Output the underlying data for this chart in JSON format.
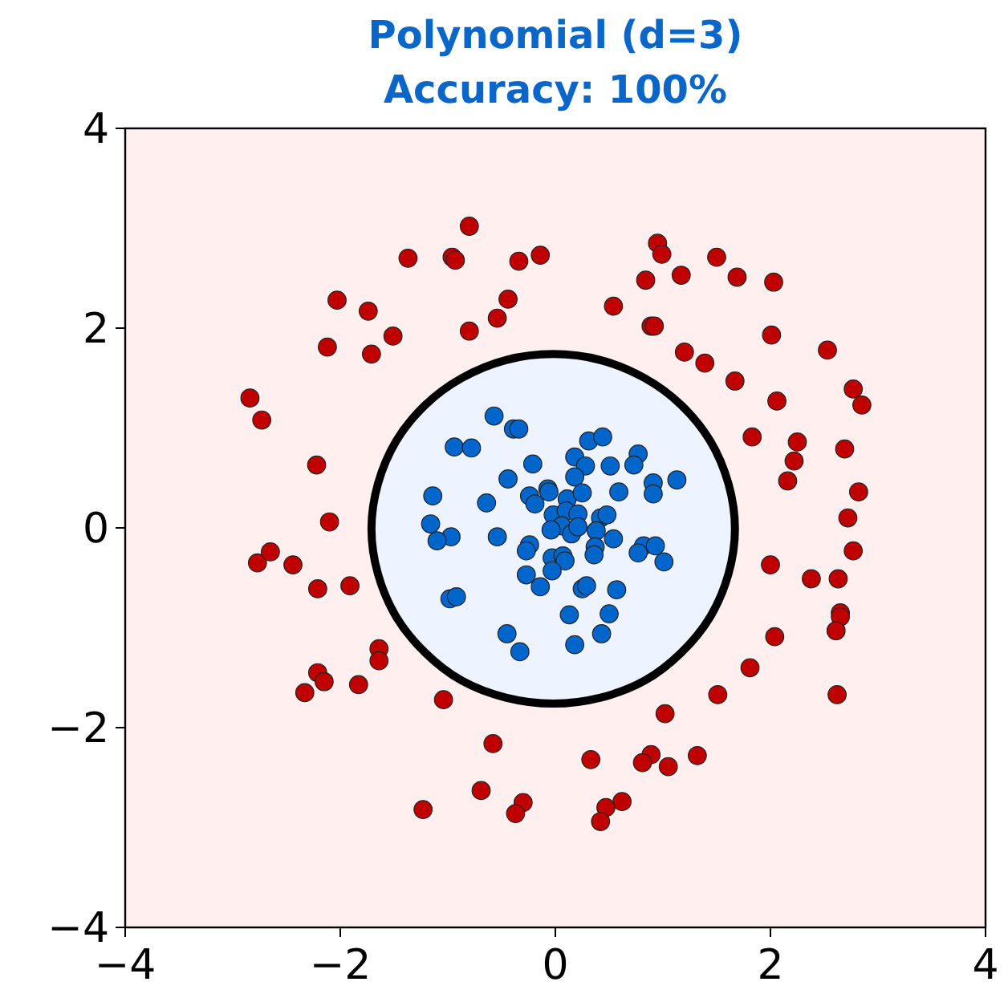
{
  "chart_data": {
    "type": "scatter",
    "title": "Polynomial (d=3)",
    "subtitle": "Accuracy: 100%",
    "xlim": [
      -4,
      4
    ],
    "ylim": [
      -4,
      4
    ],
    "xticks": [
      -4,
      -2,
      0,
      2,
      4
    ],
    "yticks": [
      -4,
      -2,
      0,
      2,
      4
    ],
    "grid": false,
    "series": [
      {
        "color": "#c00000",
        "marker": "circle",
        "x": [
          -0.8,
          -1.37,
          -0.96,
          -0.93,
          -0.34,
          -0.14,
          -2.03,
          -1.74,
          -1.51,
          -2.12,
          -1.71,
          -0.44,
          -0.54,
          -0.8,
          -2.84,
          -2.73,
          -2.22,
          -2.1,
          -2.77,
          -2.65,
          -2.44,
          -2.21,
          -1.91,
          -1.64,
          -1.64,
          -2.21,
          -2.15,
          -2.33,
          -1.83,
          -1.04,
          -0.58,
          -0.69,
          -0.3,
          -0.37,
          -1.23,
          0.95,
          0.99,
          1.5,
          0.84,
          1.17,
          1.69,
          2.03,
          0.54,
          0.89,
          0.92,
          2.01,
          2.53,
          1.2,
          1.39,
          1.67,
          2.06,
          2.77,
          2.85,
          1.83,
          2.25,
          2.22,
          2.69,
          2.16,
          2.82,
          2.72,
          2.77,
          2.0,
          2.38,
          2.63,
          2.65,
          2.65,
          2.61,
          2.04,
          1.81,
          1.51,
          2.62,
          1.02,
          0.33,
          0.89,
          0.81,
          1.05,
          1.32,
          0.62,
          0.47,
          0.42
        ],
        "values": [
          3.02,
          2.7,
          2.71,
          2.68,
          2.67,
          2.73,
          2.28,
          2.17,
          1.92,
          1.81,
          1.74,
          2.29,
          2.1,
          1.97,
          1.3,
          1.08,
          0.63,
          0.06,
          -0.35,
          -0.24,
          -0.37,
          -0.61,
          -0.58,
          -1.21,
          -1.33,
          -1.45,
          -1.54,
          -1.65,
          -1.57,
          -1.72,
          -2.16,
          -2.63,
          -2.75,
          -2.86,
          -2.82,
          2.85,
          2.74,
          2.71,
          2.48,
          2.53,
          2.51,
          2.46,
          2.22,
          2.02,
          2.02,
          1.93,
          1.78,
          1.76,
          1.65,
          1.47,
          1.27,
          1.39,
          1.23,
          0.91,
          0.86,
          0.67,
          0.79,
          0.47,
          0.36,
          0.1,
          -0.23,
          -0.37,
          -0.51,
          -0.51,
          -0.85,
          -0.89,
          -1.03,
          -1.09,
          -1.4,
          -1.67,
          -1.67,
          -1.86,
          -2.32,
          -2.27,
          -2.35,
          -2.39,
          -2.28,
          -2.74,
          -2.8,
          -2.94
        ]
      },
      {
        "color": "#0066cc",
        "marker": "circle",
        "x": [
          -0.57,
          -0.39,
          -0.34,
          -0.94,
          -0.78,
          0.31,
          0.44,
          -0.21,
          0.18,
          0.28,
          0.51,
          0.77,
          0.73,
          1.13,
          0.91,
          0.91,
          -0.44,
          0.18,
          0.59,
          -1.14,
          -0.64,
          -0.24,
          -0.19,
          -0.07,
          -0.06,
          0.11,
          0.25,
          -0.02,
          0.1,
          0.21,
          0.42,
          0.48,
          0.06,
          -0.04,
          0.15,
          0.21,
          0.38,
          -1.16,
          -0.97,
          -1.1,
          -0.54,
          0.54,
          -0.24,
          -0.27,
          0.37,
          0.36,
          0.82,
          0.93,
          0.77,
          1.01,
          -0.03,
          0.07,
          0.09,
          -0.03,
          -0.27,
          -0.14,
          0.25,
          0.29,
          0.57,
          -0.98,
          -0.92,
          0.13,
          0.5,
          -0.45,
          0.43,
          -0.33,
          0.18
        ],
        "values": [
          1.12,
          0.99,
          0.99,
          0.81,
          0.8,
          0.87,
          0.91,
          0.64,
          0.71,
          0.62,
          0.62,
          0.74,
          0.63,
          0.48,
          0.45,
          0.34,
          0.49,
          0.51,
          0.36,
          0.32,
          0.25,
          0.32,
          0.24,
          0.39,
          0.36,
          0.29,
          0.35,
          0.13,
          0.17,
          0.14,
          0.1,
          0.13,
          0.02,
          -0.02,
          -0.06,
          0.01,
          -0.03,
          0.04,
          -0.09,
          -0.13,
          -0.09,
          -0.11,
          -0.17,
          -0.23,
          -0.19,
          -0.27,
          -0.18,
          -0.18,
          -0.25,
          -0.34,
          -0.3,
          -0.28,
          -0.33,
          -0.43,
          -0.47,
          -0.59,
          -0.61,
          -0.58,
          -0.62,
          -0.71,
          -0.69,
          -0.87,
          -0.86,
          -1.06,
          -1.06,
          -1.24,
          -1.17
        ]
      },
      {
        "type": "area",
        "color": "#000000",
        "x": [
          1.67,
          1.61,
          1.44,
          1.17,
          0.83,
          0.42,
          -0.02,
          -0.46,
          -0.87,
          -1.21,
          -1.48,
          -1.65,
          -1.71,
          -1.65,
          -1.48,
          -1.21,
          -0.87,
          -0.46,
          -0.02,
          0.42,
          0.83,
          1.17,
          1.44,
          1.61,
          1.67
        ],
        "values": [
          -0.01,
          0.44,
          0.87,
          1.23,
          1.5,
          1.68,
          1.74,
          1.68,
          1.5,
          1.23,
          0.87,
          0.44,
          -0.01,
          -0.46,
          -0.89,
          -1.25,
          -1.53,
          -1.7,
          -1.76,
          -1.7,
          -1.53,
          -1.25,
          -0.89,
          -0.46,
          -0.01
        ]
      }
    ]
  }
}
